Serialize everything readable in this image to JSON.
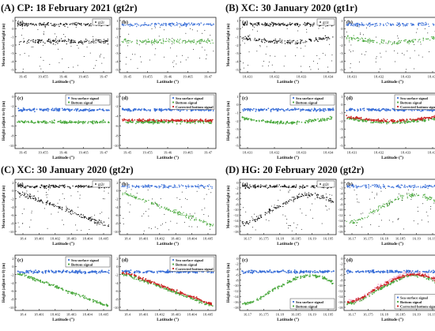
{
  "figure": {
    "panels": [
      {
        "title": "(A) CP: 18 February 2021 (gt2r)"
      },
      {
        "title": "(B) XC: 30 January 2020 (gt1r)"
      },
      {
        "title": "(C) XC: 30 January 2020 (gt2r)"
      },
      {
        "title": "(D) HG: 20 February 2020 (gt2r)"
      }
    ],
    "subplot_letters": [
      "(a)",
      "(b)",
      "(c)",
      "(d)"
    ],
    "labels": {
      "ylabel_top": "Mean sea level height (m)",
      "ylabel_bottom": "Height (adjust to 0) (m)",
      "xlabel": "Latitude (°)"
    },
    "legend_entries": {
      "gt2r": "gt2r",
      "gt1r": "gt1r",
      "surface": "Sea surface signal",
      "bottom": "Bottom signal",
      "corrected": "Corrected bottom signal"
    },
    "colors": {
      "raw": "#111111",
      "surface": "#3a6fd8",
      "bottom": "#49a83c",
      "corrected": "#cc2222",
      "pink": "#f2a6c8"
    }
  },
  "chart_data": [
    {
      "id": "A",
      "type": "scatter",
      "x_ticks": [
        "19.45",
        "19.455",
        "19.46",
        "19.465",
        "19.47"
      ],
      "x_ticks_b": [
        "19.45",
        "19.455",
        "19.46",
        "19.465",
        "19.47"
      ],
      "y_ticks_top": [
        "1",
        "0",
        "-1",
        "-2",
        "-3",
        "-4",
        "-5"
      ],
      "y_ticks_bottom": [
        "0",
        "-2",
        "-4",
        "-6",
        "-8",
        "-10"
      ],
      "legend_top": "gt2r",
      "ylim_top": [
        -5,
        1.5
      ],
      "ylim_bottom": [
        -10,
        1
      ],
      "series": [
        {
          "name": "Sea surface signal",
          "level": 0.3
        },
        {
          "name": "Bottom signal",
          "level": -1.8,
          "slope": 0.0
        },
        {
          "name": "Corrected bottom signal",
          "level": -1.0
        }
      ]
    },
    {
      "id": "B",
      "type": "scatter",
      "x_ticks": [
        "18.431",
        "18.432",
        "18.433",
        "18.434"
      ],
      "x_ticks_b": [
        "18.431",
        "18.432",
        "18.433",
        "18.434"
      ],
      "y_ticks_top": [
        "1",
        "0",
        "-1",
        "-2",
        "-3",
        "-4",
        "-5"
      ],
      "y_ticks_bottom": [
        "1",
        "0",
        "-1",
        "-2",
        "-3",
        "-4",
        "-5"
      ],
      "legend_top": "gt1r",
      "ylim_top": [
        -5,
        1.5
      ],
      "ylim_bottom": [
        -5,
        1.5
      ],
      "series": [
        {
          "name": "Sea surface signal",
          "level": 0.4
        },
        {
          "name": "Bottom signal",
          "level": -0.8
        },
        {
          "name": "Corrected bottom signal",
          "level": -0.4
        }
      ]
    },
    {
      "id": "C",
      "type": "scatter",
      "x_ticks": [
        "18.4",
        "18.401",
        "18.402",
        "18.403",
        "18.404",
        "18.405"
      ],
      "x_ticks_b": [
        "18.4",
        "18.401",
        "18.402",
        "18.403",
        "18.404",
        "18.405"
      ],
      "y_ticks_top": [
        "2",
        "0",
        "-2",
        "-4",
        "-6",
        "-8",
        "-10"
      ],
      "y_ticks_bottom": [
        "2",
        "0",
        "-2",
        "-4",
        "-6",
        "-8",
        "-10"
      ],
      "legend_top": "gt2r",
      "ylim_top": [
        -10,
        2
      ],
      "ylim_bottom": [
        -10,
        2
      ],
      "series": [
        {
          "name": "Sea surface signal",
          "level": 0.5
        },
        {
          "name": "Bottom signal",
          "level": -2.0
        },
        {
          "name": "Corrected bottom signal",
          "level": -1.5
        }
      ]
    },
    {
      "id": "D",
      "type": "scatter",
      "x_ticks": [
        "16.17",
        "16.175",
        "16.18",
        "16.185",
        "16.19",
        "16.195"
      ],
      "x_ticks_b": [
        "16.17",
        "16.175",
        "16.18",
        "16.185",
        "16.19",
        "16.195"
      ],
      "y_ticks_top": [
        "0",
        "-2",
        "-4",
        "-6",
        "-8",
        "-10",
        "-12",
        "-14",
        "-16",
        "-18"
      ],
      "y_ticks_bottom": [
        "0",
        "-2",
        "-4",
        "-6",
        "-8",
        "-10",
        "-12",
        "-14",
        "-16",
        "-18"
      ],
      "legend_top": "gt2r",
      "ylim_top": [
        -18,
        1
      ],
      "ylim_bottom": [
        -18,
        1
      ],
      "series": [
        {
          "name": "Sea surface signal",
          "level": 0.0
        },
        {
          "name": "Bottom signal",
          "level": -5.5
        },
        {
          "name": "Corrected bottom signal",
          "level": -5.0
        }
      ]
    }
  ]
}
